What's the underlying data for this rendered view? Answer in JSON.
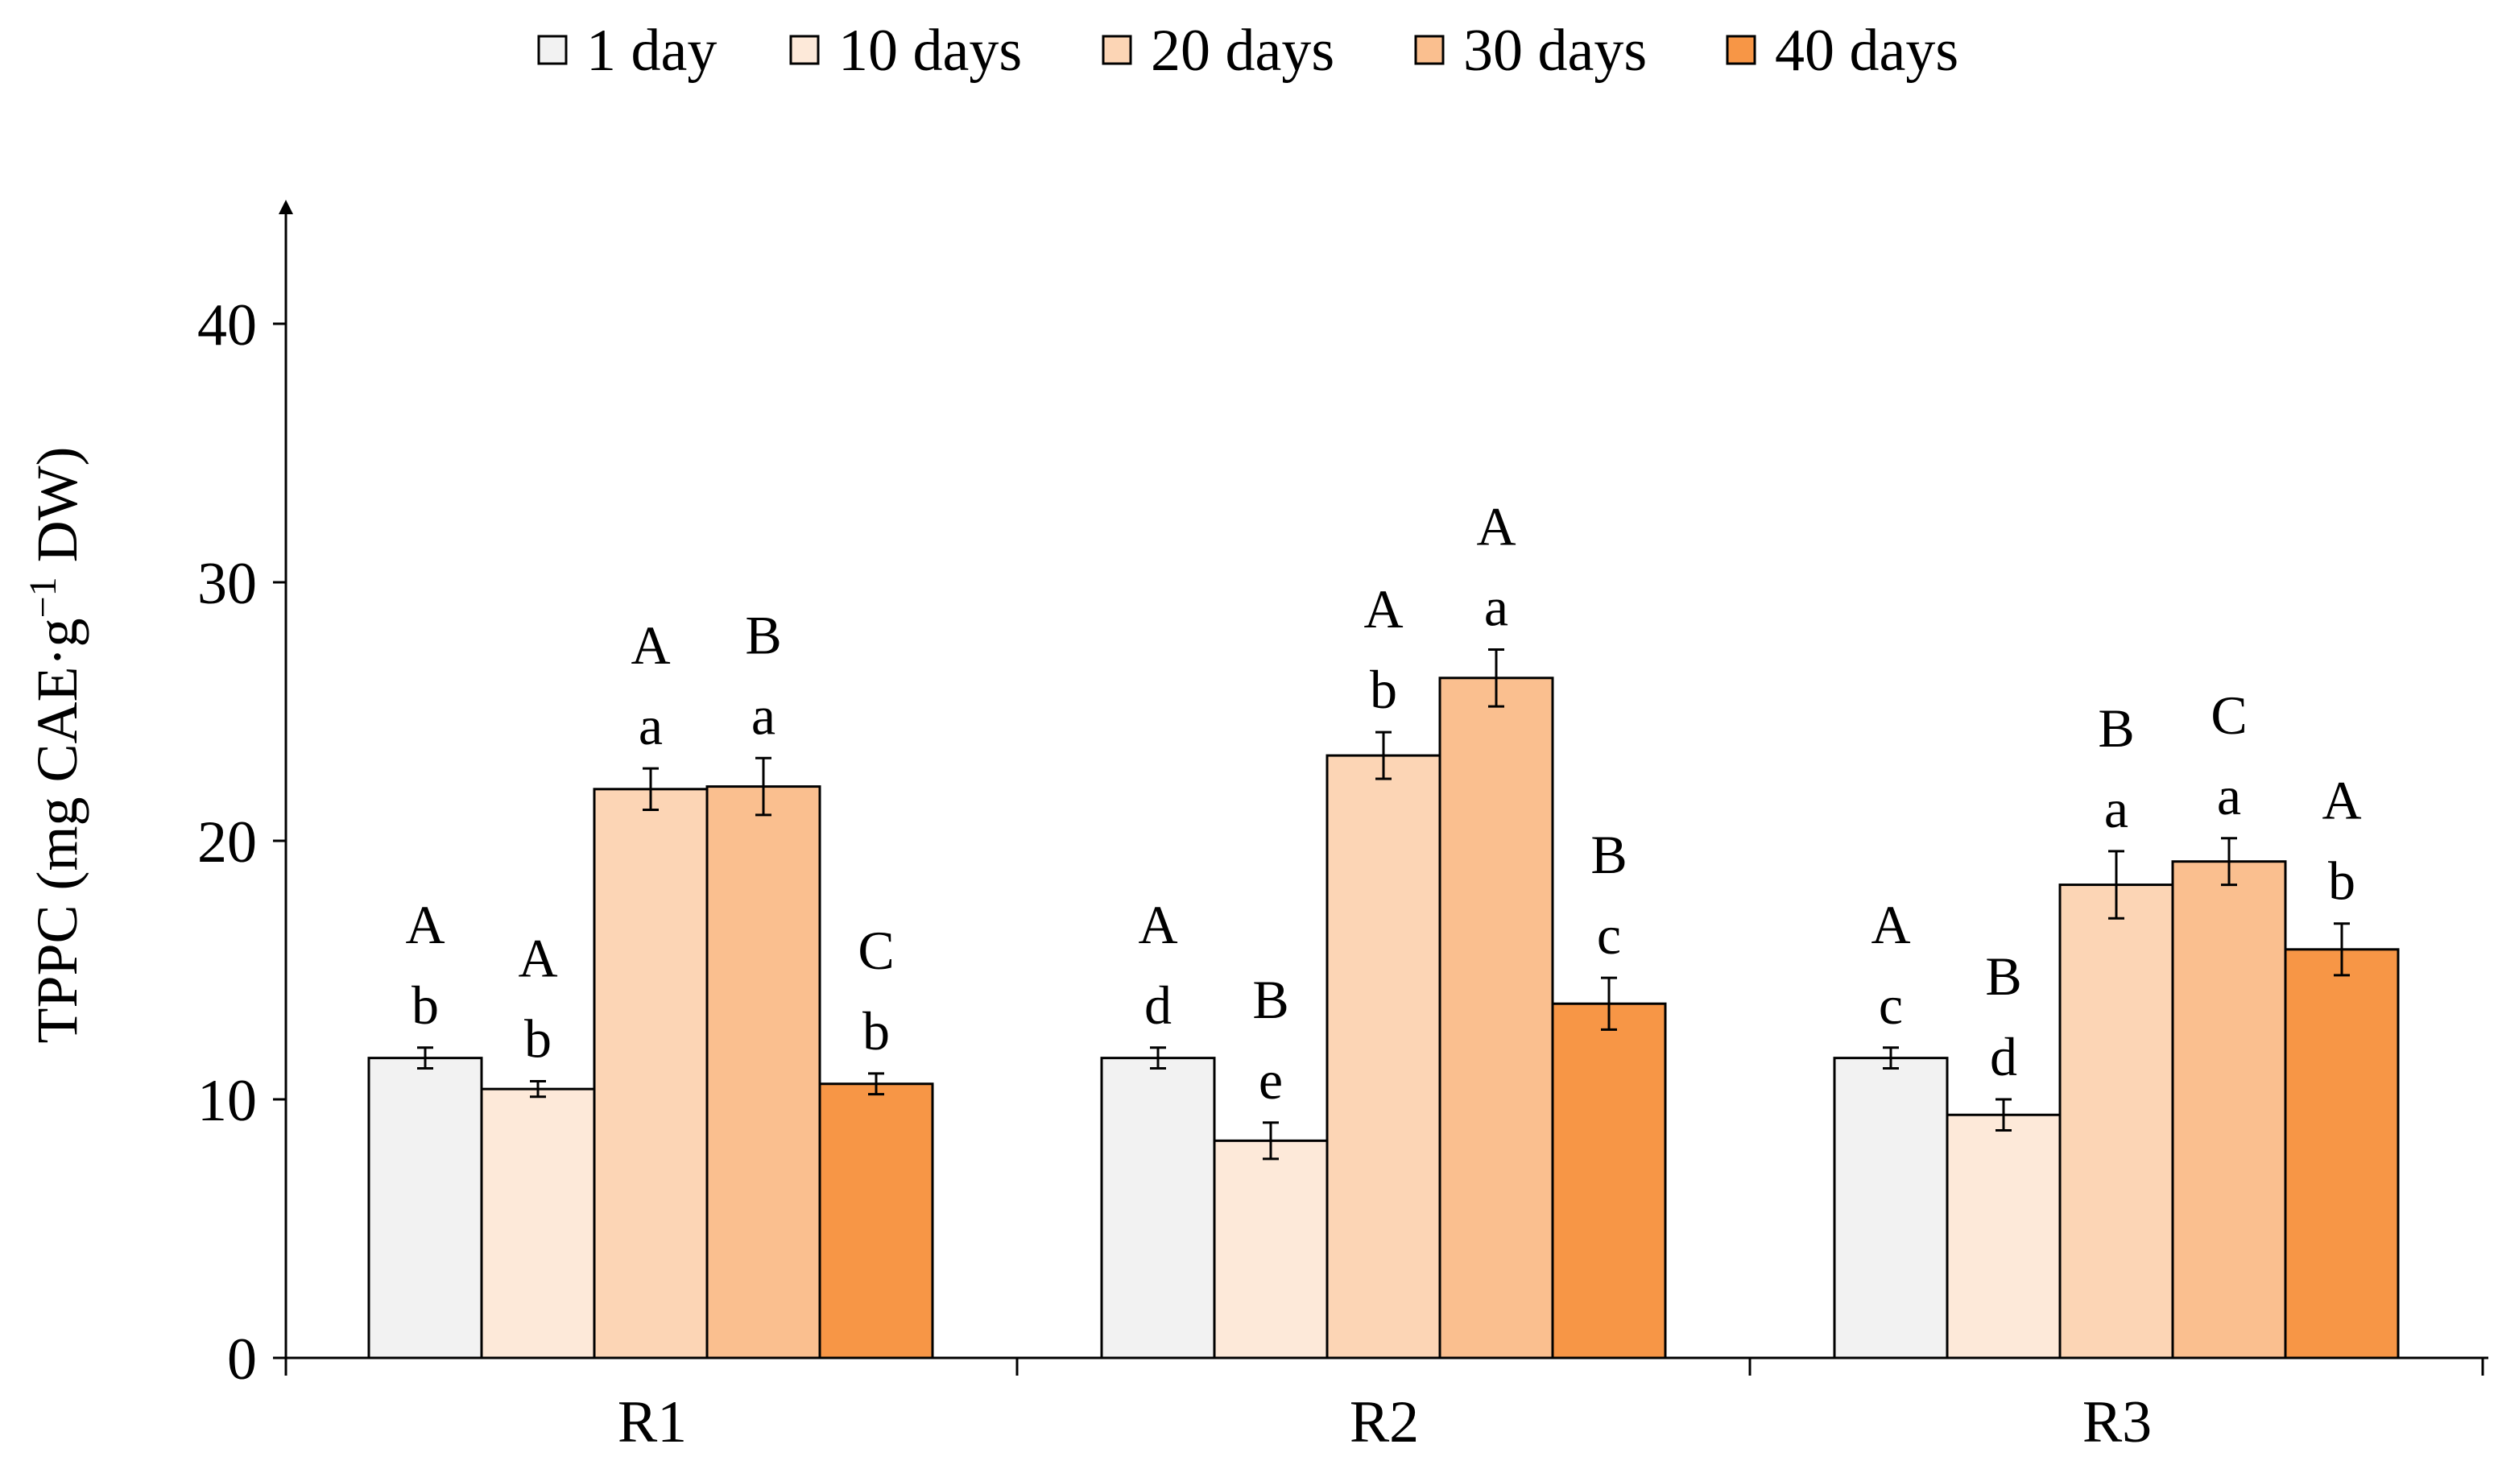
{
  "chart_data": {
    "type": "bar",
    "title": "",
    "xlabel": "",
    "ylabel": {
      "main": "TPPC (mg CAE·g",
      "superscript": "−1",
      "suffix": " DW)"
    },
    "ylim": [
      0,
      45
    ],
    "yticks": [
      "0",
      "10",
      "20",
      "30",
      "40"
    ],
    "ytick_values": [
      0,
      10,
      20,
      30,
      40
    ],
    "grid": false,
    "legend_position": "top",
    "categories": [
      "R1",
      "R2",
      "R3"
    ],
    "series": [
      {
        "name": "1 day",
        "color": "#f2f2f2",
        "values": [
          11.6,
          11.6,
          11.6
        ],
        "errors": [
          0.4,
          0.4,
          0.4
        ],
        "upper_letters": [
          "A",
          "A",
          "A"
        ],
        "lower_letters": [
          "b",
          "d",
          "c"
        ]
      },
      {
        "name": "10 days",
        "color": "#fde9d9",
        "values": [
          10.4,
          8.4,
          9.4
        ],
        "errors": [
          0.3,
          0.7,
          0.6
        ],
        "upper_letters": [
          "A",
          "B",
          "B"
        ],
        "lower_letters": [
          "b",
          "e",
          "d"
        ]
      },
      {
        "name": "20 days",
        "color": "#fcd5b5",
        "values": [
          22.0,
          23.3,
          18.3
        ],
        "errors": [
          0.8,
          0.9,
          1.3
        ],
        "upper_letters": [
          "A",
          "A",
          "B"
        ],
        "lower_letters": [
          "a",
          "b",
          "a"
        ]
      },
      {
        "name": "30 days",
        "color": "#fabf8f",
        "values": [
          22.1,
          26.3,
          19.2
        ],
        "errors": [
          1.1,
          1.1,
          0.9
        ],
        "upper_letters": [
          "B",
          "A",
          "C"
        ],
        "lower_letters": [
          "a",
          "a",
          "a"
        ]
      },
      {
        "name": "40 days",
        "color": "#f79646",
        "values": [
          10.6,
          13.7,
          15.8
        ],
        "errors": [
          0.4,
          1.0,
          1.0
        ],
        "upper_letters": [
          "C",
          "B",
          "A"
        ],
        "lower_letters": [
          "b",
          "c",
          "b"
        ]
      }
    ]
  }
}
